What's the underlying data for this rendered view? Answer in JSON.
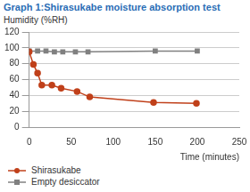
{
  "chart_data": {
    "type": "line",
    "title": "Graph 1:Shirasukabe moisture absorption test",
    "y_label": "Humidity (%RH)",
    "x_label": "Time (minutes)",
    "xlim": [
      0,
      250
    ],
    "xticks": [
      0,
      50,
      100,
      150,
      200,
      250
    ],
    "ylim": [
      0,
      120
    ],
    "yticks": [
      0,
      20,
      40,
      60,
      80,
      100,
      120
    ],
    "grid": "y",
    "legend": "bottom",
    "series": [
      {
        "name": "Shirasukabe",
        "color": "#c0401a",
        "marker": "circle",
        "x": [
          0,
          5,
          10,
          15,
          27,
          38,
          57,
          72,
          148,
          199
        ],
        "values": [
          95,
          79,
          68,
          53,
          53,
          49,
          45,
          38,
          31,
          30
        ]
      },
      {
        "name": "Empty desiccator",
        "color": "#808080",
        "marker": "square",
        "x": [
          0,
          10,
          20,
          30,
          40,
          55,
          70,
          150,
          200
        ],
        "values": [
          96,
          96,
          96,
          95,
          95,
          95,
          95,
          96,
          96
        ]
      }
    ]
  }
}
